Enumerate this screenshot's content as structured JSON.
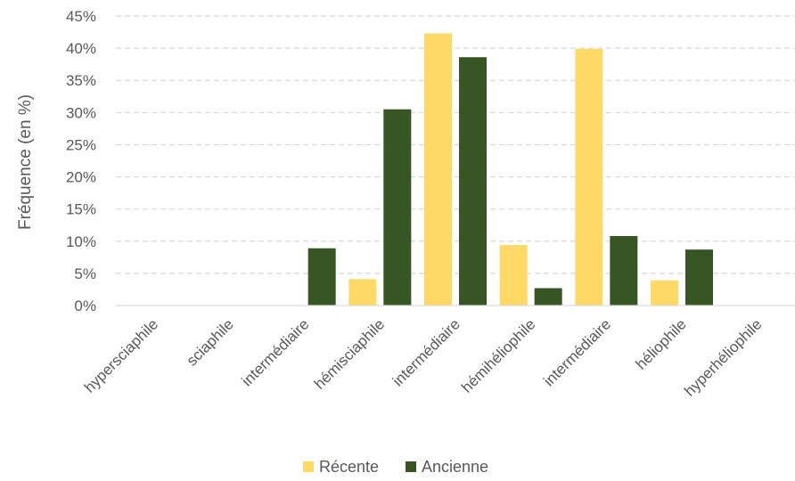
{
  "chart_data": {
    "type": "bar",
    "title": "",
    "xlabel": "",
    "ylabel": "Fréquence (en %)",
    "categories": [
      "hypersciaphile",
      "sciaphile",
      "intermédiaire",
      "hémisciaphile",
      "intermédiaire",
      "hémihéliophile",
      "intermédiaire",
      "héliophile",
      "hyperhéliophile"
    ],
    "series": [
      {
        "name": "Récente",
        "color": "#FFD966",
        "values": [
          0,
          0,
          0,
          4.1,
          42.3,
          9.4,
          39.9,
          3.9,
          0
        ]
      },
      {
        "name": "Ancienne",
        "color": "#375623",
        "values": [
          0,
          0,
          8.9,
          30.5,
          38.6,
          2.7,
          10.8,
          8.7,
          0
        ]
      }
    ],
    "ylim": [
      0,
      45
    ],
    "yticks": [
      "0%",
      "5%",
      "10%",
      "15%",
      "20%",
      "25%",
      "30%",
      "35%",
      "40%",
      "45%"
    ],
    "grid": true,
    "legend_position": "bottom"
  }
}
